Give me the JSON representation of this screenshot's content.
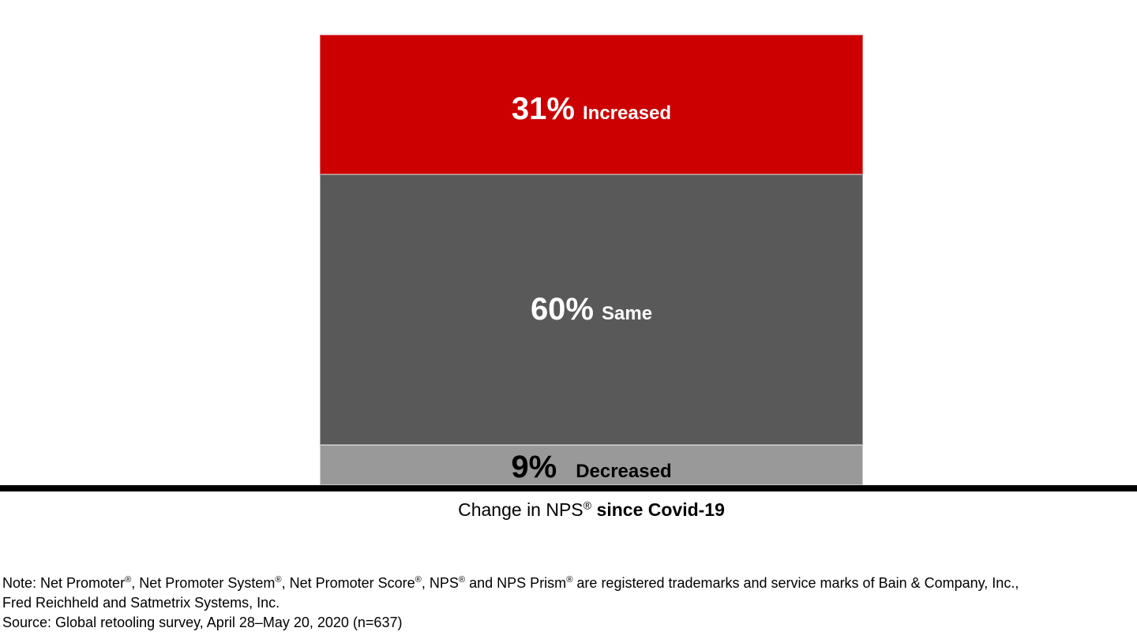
{
  "chart_data": {
    "type": "bar",
    "subtype": "stacked-vertical-single-column",
    "title": "",
    "categories": [
      "Change in NPS® since Covid-19"
    ],
    "series": [
      {
        "name": "Increased",
        "value": 31,
        "display": "31%",
        "color": "#cc0000",
        "border_color": "#e06666",
        "text_color": "#ffffff"
      },
      {
        "name": "Same",
        "value": 60,
        "display": "60%",
        "color": "#595959",
        "border_color": "#a6a6a6",
        "text_color": "#ffffff"
      },
      {
        "name": "Decreased",
        "value": 9,
        "display": "9%",
        "color": "#999999",
        "border_color": "#cccccc",
        "text_color": "#000000"
      }
    ],
    "ylim": [
      0,
      100
    ],
    "segment_order_top_to_bottom": [
      "Increased",
      "Same",
      "Decreased"
    ],
    "value_labels": "inside",
    "legend": "none",
    "grid": "off",
    "axis_line_color": "#000000",
    "xlabel": "Change in NPS® since Covid-19"
  },
  "xlabel_parts": {
    "regular": "Change in NPS®",
    "bold": "since Covid-19"
  },
  "footer": {
    "note_line1": "Note: Net Promoter®, Net Promoter System®, Net Promoter Score®, NPS® and NPS Prism® are registered trademarks and service marks of Bain & Company, Inc.,",
    "note_line2": "Fred Reichheld and Satmetrix Systems, Inc.",
    "source_line": "Source: Global retooling survey, April 28–May 20, 2020 (n=637)"
  },
  "colors": {
    "background": "#ffffff",
    "accent_red": "#cc0000",
    "dark_gray": "#595959",
    "light_gray": "#999999",
    "axis_black": "#000000"
  }
}
